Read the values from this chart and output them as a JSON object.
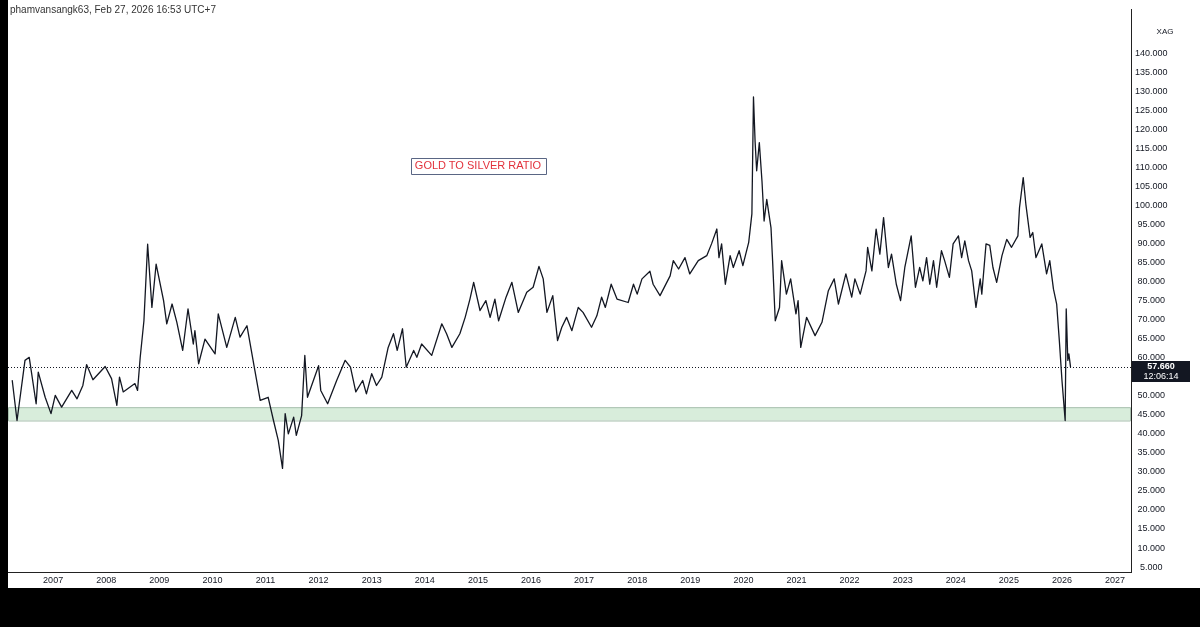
{
  "chart_data": {
    "type": "line",
    "title": "GOLD TO SILVER RATIO",
    "ylabel": "XAG",
    "annotations": [
      "phamvansangk63, Feb 27, 2026 16:53 UTC+7"
    ],
    "color": "#131722",
    "marker": "none",
    "line_style": "solid",
    "x": [
      2006.23,
      2006.32,
      2006.47,
      2006.55,
      2006.68,
      2006.72,
      2006.85,
      2006.96,
      2007.04,
      2007.16,
      2007.35,
      2007.45,
      2007.56,
      2007.63,
      2007.75,
      2007.98,
      2008.1,
      2008.2,
      2008.25,
      2008.32,
      2008.54,
      2008.59,
      2008.64,
      2008.71,
      2008.78,
      2008.86,
      2008.94,
      2009.08,
      2009.14,
      2009.24,
      2009.33,
      2009.44,
      2009.54,
      2009.64,
      2009.67,
      2009.74,
      2009.86,
      2010.05,
      2010.11,
      2010.27,
      2010.43,
      2010.52,
      2010.65,
      2010.8,
      2010.9,
      2011.05,
      2011.15,
      2011.24,
      2011.32,
      2011.37,
      2011.43,
      2011.53,
      2011.58,
      2011.68,
      2011.74,
      2011.79,
      2012.0,
      2012.04,
      2012.17,
      2012.34,
      2012.5,
      2012.6,
      2012.7,
      2012.83,
      2012.9,
      2013.0,
      2013.09,
      2013.19,
      2013.31,
      2013.41,
      2013.48,
      2013.58,
      2013.65,
      2013.79,
      2013.85,
      2013.94,
      2014.13,
      2014.32,
      2014.41,
      2014.51,
      2014.66,
      2014.76,
      2014.85,
      2014.92,
      2015.04,
      2015.15,
      2015.23,
      2015.32,
      2015.39,
      2015.53,
      2015.64,
      2015.76,
      2015.92,
      2016.04,
      2016.15,
      2016.23,
      2016.3,
      2016.41,
      2016.5,
      2016.58,
      2016.67,
      2016.77,
      2016.89,
      2016.98,
      2017.14,
      2017.24,
      2017.33,
      2017.4,
      2017.51,
      2017.62,
      2017.83,
      2017.93,
      2018.0,
      2018.09,
      2018.24,
      2018.3,
      2018.43,
      2018.62,
      2018.68,
      2018.78,
      2018.9,
      2018.99,
      2019.15,
      2019.31,
      2019.4,
      2019.5,
      2019.54,
      2019.59,
      2019.66,
      2019.75,
      2019.81,
      2019.92,
      2019.99,
      2020.1,
      2020.16,
      2020.19,
      2020.22,
      2020.25,
      2020.3,
      2020.35,
      2020.39,
      2020.44,
      2020.52,
      2020.55,
      2020.6,
      2020.68,
      2020.72,
      2020.81,
      2020.89,
      2020.99,
      2021.03,
      2021.08,
      2021.19,
      2021.35,
      2021.48,
      2021.6,
      2021.71,
      2021.79,
      2021.93,
      2022.04,
      2022.1,
      2022.2,
      2022.31,
      2022.34,
      2022.42,
      2022.5,
      2022.57,
      2022.64,
      2022.73,
      2022.79,
      2022.88,
      2022.96,
      2023.04,
      2023.16,
      2023.24,
      2023.32,
      2023.38,
      2023.45,
      2023.51,
      2023.58,
      2023.64,
      2023.73,
      2023.79,
      2023.88,
      2023.95,
      2024.05,
      2024.11,
      2024.17,
      2024.24,
      2024.3,
      2024.38,
      2024.46,
      2024.49,
      2024.57,
      2024.64,
      2024.7,
      2024.77,
      2024.87,
      2024.96,
      2025.05,
      2025.17,
      2025.2,
      2025.27,
      2025.32,
      2025.4,
      2025.45,
      2025.51,
      2025.62,
      2025.71,
      2025.77,
      2025.84,
      2025.9,
      2025.95,
      2026.0,
      2026.03,
      2026.06,
      2026.08,
      2026.11,
      2026.13,
      2026.16
    ],
    "values": [
      54.0,
      43.5,
      59.3,
      60.1,
      47.9,
      56.2,
      49.6,
      45.3,
      50.1,
      47.0,
      51.4,
      49.2,
      52.7,
      58.2,
      54.2,
      57.7,
      54.5,
      47.5,
      54.9,
      51.0,
      53.2,
      51.4,
      60.1,
      69.7,
      89.8,
      73.2,
      84.6,
      75.0,
      68.9,
      74.1,
      69.3,
      61.9,
      72.8,
      63.6,
      67.1,
      58.4,
      64.9,
      61.0,
      71.5,
      62.7,
      70.6,
      65.4,
      68.4,
      56.6,
      48.8,
      49.6,
      43.5,
      38.3,
      30.9,
      45.3,
      40.0,
      44.4,
      39.6,
      44.8,
      60.6,
      49.6,
      57.9,
      51.4,
      47.9,
      54.0,
      59.3,
      57.5,
      51.0,
      54.0,
      50.5,
      55.8,
      52.7,
      54.9,
      62.7,
      66.3,
      61.9,
      67.6,
      57.5,
      61.9,
      60.1,
      63.6,
      60.6,
      68.9,
      66.3,
      62.7,
      66.3,
      70.6,
      75.4,
      79.8,
      72.4,
      75.0,
      70.6,
      75.4,
      69.7,
      75.9,
      79.8,
      71.9,
      77.2,
      78.5,
      84.0,
      80.7,
      71.9,
      76.3,
      64.5,
      68.0,
      70.6,
      67.1,
      73.2,
      71.9,
      68.0,
      71.0,
      75.9,
      73.2,
      79.3,
      75.4,
      74.5,
      79.3,
      76.7,
      80.7,
      82.7,
      79.3,
      76.3,
      81.5,
      85.5,
      83.3,
      86.3,
      82.0,
      85.5,
      86.8,
      89.9,
      93.8,
      86.3,
      89.9,
      79.3,
      86.8,
      83.7,
      88.1,
      84.2,
      90.3,
      97.8,
      128.5,
      116.9,
      109.1,
      116.5,
      106.4,
      95.9,
      101.6,
      94.1,
      85.5,
      69.7,
      73.2,
      85.5,
      76.7,
      80.7,
      71.5,
      75.0,
      62.7,
      70.6,
      65.8,
      69.3,
      77.6,
      80.7,
      74.1,
      82.0,
      75.9,
      80.7,
      76.7,
      82.8,
      89.0,
      82.8,
      93.8,
      87.2,
      96.8,
      83.7,
      87.2,
      79.3,
      75.0,
      83.7,
      92.0,
      78.5,
      83.7,
      80.2,
      86.3,
      79.3,
      85.5,
      78.5,
      88.1,
      85.5,
      81.1,
      89.9,
      92.0,
      86.3,
      90.7,
      85.5,
      82.8,
      73.2,
      80.7,
      76.7,
      89.9,
      89.5,
      83.7,
      79.8,
      86.8,
      91.1,
      89.0,
      92.0,
      99.4,
      107.3,
      100.3,
      91.6,
      92.9,
      86.3,
      89.9,
      82.0,
      85.5,
      78.0,
      74.1,
      64.5,
      54.0,
      48.8,
      43.5,
      72.8,
      59.3,
      61.0,
      57.66
    ],
    "xlim": [
      2006.15,
      2027.3
    ],
    "xticks": [
      2007,
      2008,
      2009,
      2010,
      2011,
      2012,
      2013,
      2014,
      2015,
      2016,
      2017,
      2018,
      2019,
      2020,
      2021,
      2022,
      2023,
      2024,
      2025,
      2026,
      2027
    ],
    "ylim": [
      3.7,
      151.5
    ],
    "yticks": [
      {
        "value": 5,
        "label": "5.000"
      },
      {
        "value": 10,
        "label": "10.000"
      },
      {
        "value": 15,
        "label": "15.000"
      },
      {
        "value": 20,
        "label": "20.000"
      },
      {
        "value": 25,
        "label": "25.000"
      },
      {
        "value": 30,
        "label": "30.000"
      },
      {
        "value": 35,
        "label": "35.000"
      },
      {
        "value": 40,
        "label": "40.000"
      },
      {
        "value": 45,
        "label": "45.000"
      },
      {
        "value": 50,
        "label": "50.000"
      },
      {
        "value": 60,
        "label": "60.000"
      },
      {
        "value": 65,
        "label": "65.000"
      },
      {
        "value": 70,
        "label": "70.000"
      },
      {
        "value": 75,
        "label": "75.000"
      },
      {
        "value": 80,
        "label": "80.000"
      },
      {
        "value": 85,
        "label": "85.000"
      },
      {
        "value": 90,
        "label": "90.000"
      },
      {
        "value": 95,
        "label": "95.000"
      },
      {
        "value": 100,
        "label": "100.000"
      },
      {
        "value": 105,
        "label": "105.000"
      },
      {
        "value": 110,
        "label": "110.000"
      },
      {
        "value": 115,
        "label": "115.000"
      },
      {
        "value": 120,
        "label": "120.000"
      },
      {
        "value": 125,
        "label": "125.000"
      },
      {
        "value": 130,
        "label": "130.000"
      },
      {
        "value": 135,
        "label": "135.000"
      },
      {
        "value": 140,
        "label": "140.000"
      }
    ],
    "ref_lines": [
      {
        "axis": "y",
        "value": 57.66,
        "label": "57.660\n12:06:14",
        "color": "#131722",
        "line_style": "dotted"
      }
    ],
    "bands": [
      {
        "axis": "y",
        "from": 43.5,
        "to": 47,
        "color": "#d8eddb"
      }
    ]
  }
}
